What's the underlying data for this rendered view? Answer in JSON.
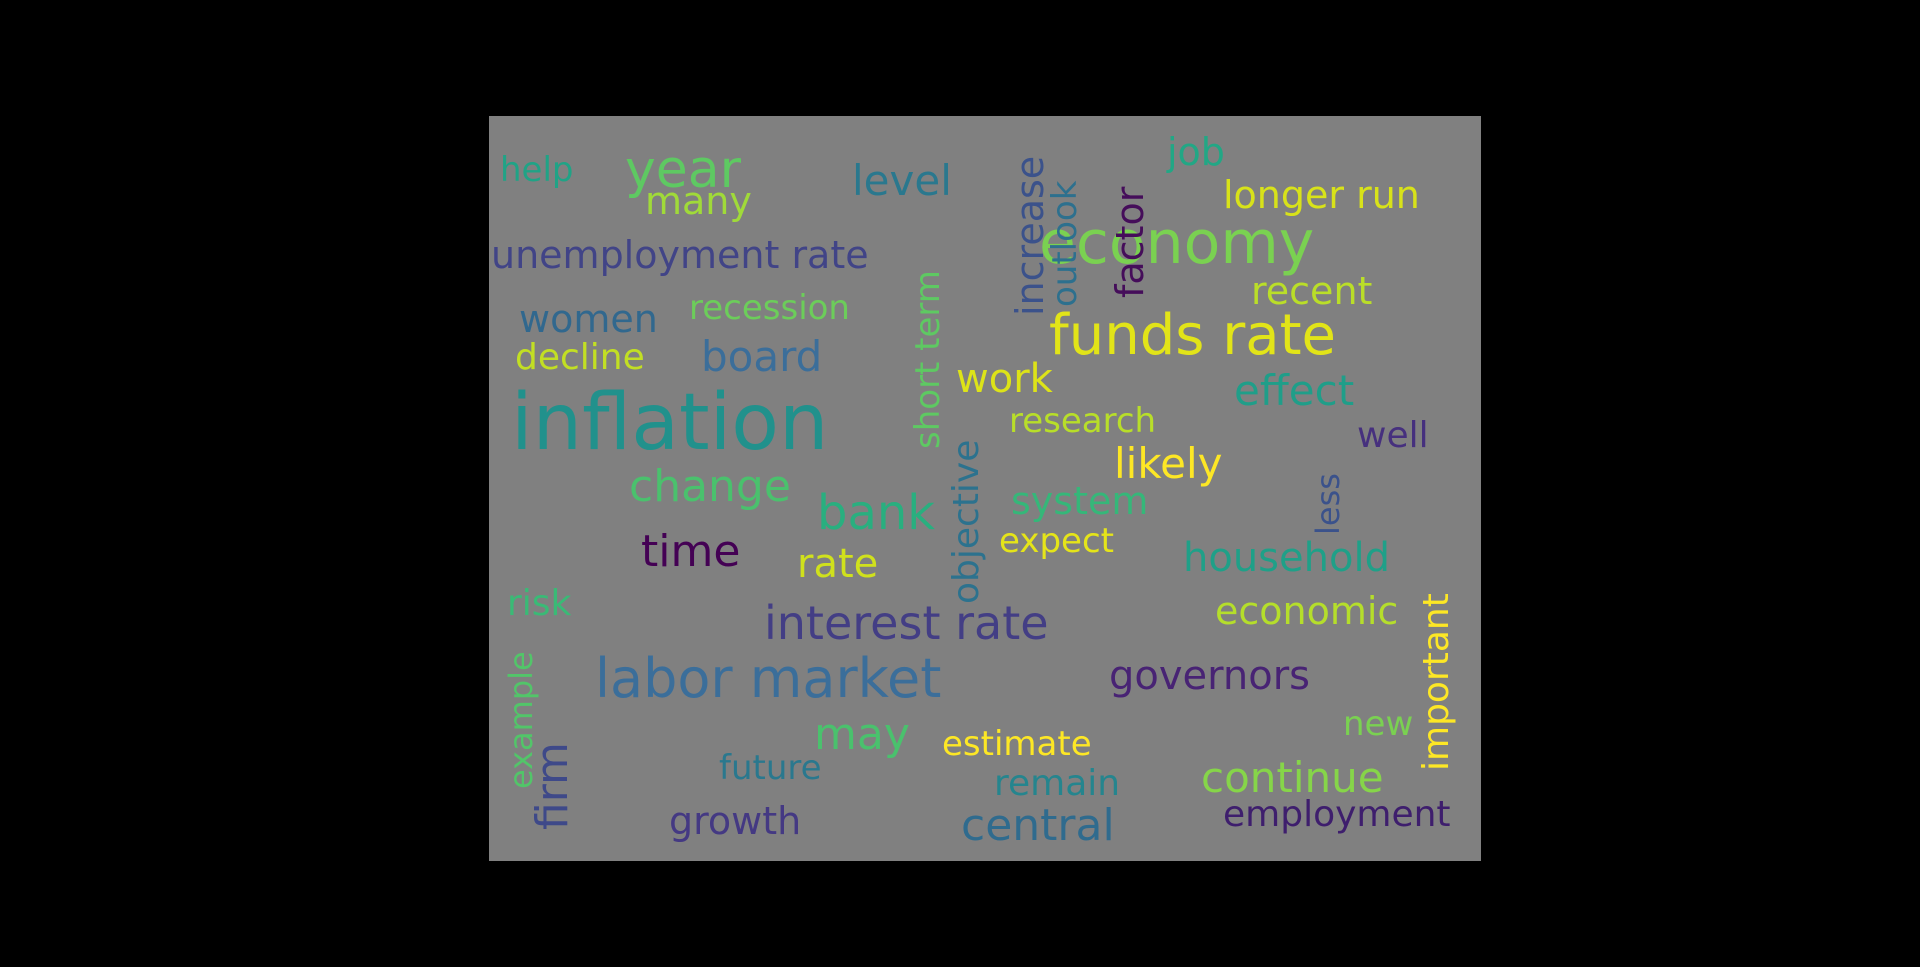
{
  "words": [
    {
      "id": "inflation",
      "text": "inflation",
      "color": "#21918c"
    },
    {
      "id": "funds-rate",
      "text": "funds rate",
      "color": "#e2e418"
    },
    {
      "id": "economy",
      "text": "economy",
      "color": "#7ad151"
    },
    {
      "id": "labor-market",
      "text": "labor market",
      "color": "#3b6e9a"
    },
    {
      "id": "year",
      "text": "year",
      "color": "#5ec962"
    },
    {
      "id": "interest-rate",
      "text": "interest rate",
      "color": "#433e85"
    },
    {
      "id": "bank",
      "text": "bank",
      "color": "#29af7f"
    },
    {
      "id": "central",
      "text": "central",
      "color": "#2f6b8e"
    },
    {
      "id": "change",
      "text": "change",
      "color": "#4ac16d"
    },
    {
      "id": "time",
      "text": "time",
      "color": "#440154"
    },
    {
      "id": "unemployment-rate",
      "text": "unemployment rate",
      "color": "#414487"
    },
    {
      "id": "increase",
      "text": "increase",
      "color": "#3b528b"
    },
    {
      "id": "governors",
      "text": "governors",
      "color": "#482374"
    },
    {
      "id": "continue",
      "text": "continue",
      "color": "#86d549"
    },
    {
      "id": "effect",
      "text": "effect",
      "color": "#1f9e89"
    },
    {
      "id": "level",
      "text": "level",
      "color": "#2a788e"
    },
    {
      "id": "board",
      "text": "board",
      "color": "#3b6e9a"
    },
    {
      "id": "may",
      "text": "may",
      "color": "#4ac16d"
    },
    {
      "id": "likely",
      "text": "likely",
      "color": "#fde725"
    },
    {
      "id": "rate",
      "text": "rate",
      "color": "#d0e11c"
    },
    {
      "id": "objective",
      "text": "objective",
      "color": "#2c728e"
    },
    {
      "id": "household",
      "text": "household",
      "color": "#1fa088"
    },
    {
      "id": "short-term",
      "text": "short term",
      "color": "#5ec962"
    },
    {
      "id": "work",
      "text": "work",
      "color": "#dde318"
    },
    {
      "id": "firm",
      "text": "firm",
      "color": "#3e4989"
    },
    {
      "id": "important",
      "text": "important",
      "color": "#fde725"
    },
    {
      "id": "economic",
      "text": "economic",
      "color": "#b5de2b"
    },
    {
      "id": "longer-run",
      "text": "longer run",
      "color": "#d8e219"
    },
    {
      "id": "growth",
      "text": "growth",
      "color": "#443983"
    },
    {
      "id": "employment",
      "text": "employment",
      "color": "#3e1e6d"
    },
    {
      "id": "factor",
      "text": "factor",
      "color": "#450d5a"
    },
    {
      "id": "outlook",
      "text": "outlook",
      "color": "#2d708e"
    },
    {
      "id": "system",
      "text": "system",
      "color": "#35b779"
    },
    {
      "id": "many",
      "text": "many",
      "color": "#a0da39"
    },
    {
      "id": "recent",
      "text": "recent",
      "color": "#bade28"
    },
    {
      "id": "women",
      "text": "women",
      "color": "#31688e"
    },
    {
      "id": "decline",
      "text": "decline",
      "color": "#c2df23"
    },
    {
      "id": "recession",
      "text": "recession",
      "color": "#6ccd5a"
    },
    {
      "id": "job",
      "text": "job",
      "color": "#22a785"
    },
    {
      "id": "remain",
      "text": "remain",
      "color": "#25858e"
    },
    {
      "id": "well",
      "text": "well",
      "color": "#46307e"
    },
    {
      "id": "research",
      "text": "research",
      "color": "#b8de29"
    },
    {
      "id": "expect",
      "text": "expect",
      "color": "#e5e419"
    },
    {
      "id": "estimate",
      "text": "estimate",
      "color": "#fde725"
    },
    {
      "id": "risk",
      "text": "risk",
      "color": "#3aba76"
    },
    {
      "id": "example",
      "text": "example",
      "color": "#52c569"
    },
    {
      "id": "less",
      "text": "less",
      "color": "#3b528b"
    },
    {
      "id": "future",
      "text": "future",
      "color": "#2a788e"
    },
    {
      "id": "new",
      "text": "new",
      "color": "#7ad151"
    },
    {
      "id": "help",
      "text": "help",
      "color": "#20a386"
    }
  ]
}
